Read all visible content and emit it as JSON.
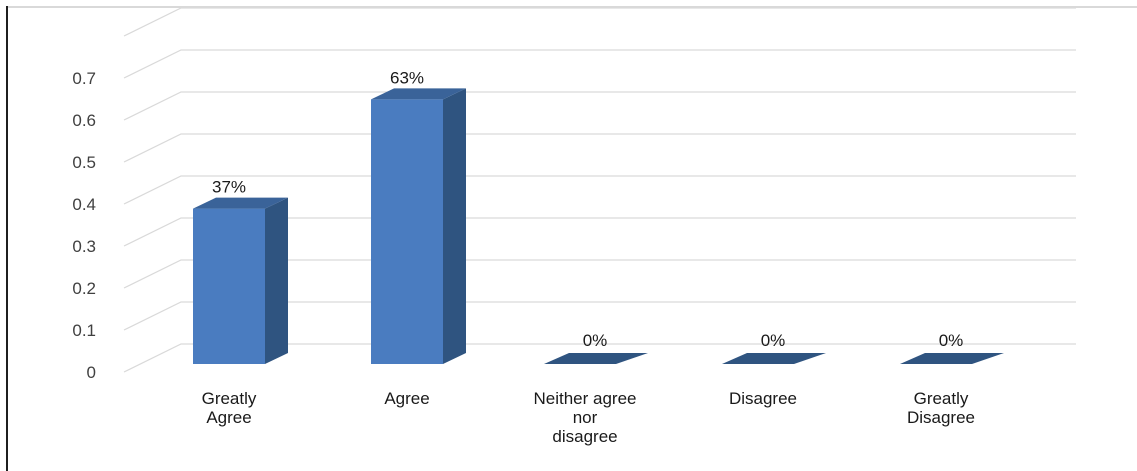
{
  "chart_data": {
    "type": "bar",
    "style": "3d-column",
    "categories": [
      [
        "Greatly",
        "Agree"
      ],
      [
        "Agree"
      ],
      [
        "Neither agree",
        "nor",
        "disagree"
      ],
      [
        "Disagree"
      ],
      [
        "Greatly",
        "Disagree"
      ]
    ],
    "values": [
      0.37,
      0.63,
      0,
      0,
      0
    ],
    "data_labels": [
      "37%",
      "63%",
      "0%",
      "0%",
      "0%"
    ],
    "y_ticks": [
      "0",
      "0.1",
      "0.2",
      "0.3",
      "0.4",
      "0.5",
      "0.6",
      "0.7"
    ],
    "ylim": [
      0,
      0.8
    ],
    "grid": true,
    "legend": "none",
    "colors": {
      "bar_front": "#4a7cc0",
      "bar_side": "#2f5480",
      "bar_top": "#3a6399",
      "grid": "#d9d9d9",
      "axis_text": "#404040"
    }
  }
}
